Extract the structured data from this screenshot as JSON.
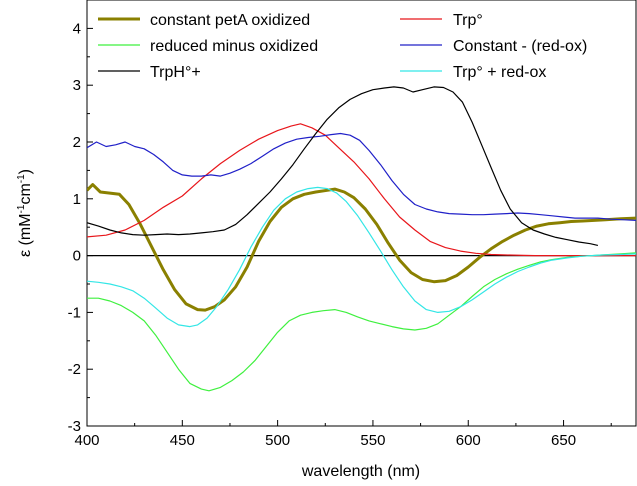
{
  "chart_data": {
    "type": "line",
    "title": "",
    "xlabel": "wavelength (nm)",
    "ylabel_parts": [
      "ε (mM",
      "-1",
      "cm",
      "-1",
      ")"
    ],
    "xlim": [
      400,
      688
    ],
    "ylim": [
      -3,
      4.5
    ],
    "x_ticks": [
      400,
      450,
      500,
      550,
      600,
      650
    ],
    "y_ticks": [
      -3,
      -2,
      -1,
      0,
      1,
      2,
      3,
      4
    ],
    "x_tick_labels": [
      "400",
      "450",
      "500",
      "550",
      "600",
      "650"
    ],
    "y_tick_labels": [
      "-3",
      "-2",
      "-1",
      "0",
      "1",
      "2",
      "3",
      "4"
    ],
    "zero_line": true,
    "grid": false,
    "legend_position": "top",
    "series": [
      {
        "name": "constant petA oxidized",
        "color": "#8a8000",
        "width": 3,
        "points": [
          [
            400,
            1.15
          ],
          [
            403,
            1.25
          ],
          [
            407,
            1.12
          ],
          [
            412,
            1.1
          ],
          [
            417,
            1.08
          ],
          [
            422,
            0.9
          ],
          [
            428,
            0.55
          ],
          [
            434,
            0.15
          ],
          [
            440,
            -0.25
          ],
          [
            446,
            -0.6
          ],
          [
            452,
            -0.85
          ],
          [
            458,
            -0.95
          ],
          [
            462,
            -0.96
          ],
          [
            467,
            -0.9
          ],
          [
            472,
            -0.78
          ],
          [
            478,
            -0.55
          ],
          [
            484,
            -0.2
          ],
          [
            490,
            0.25
          ],
          [
            496,
            0.6
          ],
          [
            502,
            0.85
          ],
          [
            508,
            1.0
          ],
          [
            514,
            1.08
          ],
          [
            520,
            1.12
          ],
          [
            526,
            1.15
          ],
          [
            530,
            1.17
          ],
          [
            535,
            1.12
          ],
          [
            540,
            1.02
          ],
          [
            546,
            0.82
          ],
          [
            552,
            0.55
          ],
          [
            558,
            0.22
          ],
          [
            564,
            -0.08
          ],
          [
            570,
            -0.3
          ],
          [
            576,
            -0.42
          ],
          [
            582,
            -0.46
          ],
          [
            588,
            -0.44
          ],
          [
            594,
            -0.35
          ],
          [
            600,
            -0.2
          ],
          [
            606,
            -0.03
          ],
          [
            612,
            0.12
          ],
          [
            618,
            0.25
          ],
          [
            624,
            0.36
          ],
          [
            630,
            0.45
          ],
          [
            636,
            0.52
          ],
          [
            642,
            0.56
          ],
          [
            648,
            0.58
          ],
          [
            654,
            0.6
          ],
          [
            660,
            0.61
          ],
          [
            666,
            0.62
          ],
          [
            672,
            0.63
          ],
          [
            680,
            0.65
          ],
          [
            688,
            0.66
          ]
        ]
      },
      {
        "name": "Trp°",
        "color": "#e8161b",
        "width": 1.2,
        "points": [
          [
            400,
            0.33
          ],
          [
            410,
            0.36
          ],
          [
            420,
            0.45
          ],
          [
            430,
            0.62
          ],
          [
            440,
            0.85
          ],
          [
            450,
            1.05
          ],
          [
            460,
            1.35
          ],
          [
            470,
            1.62
          ],
          [
            480,
            1.85
          ],
          [
            490,
            2.05
          ],
          [
            500,
            2.2
          ],
          [
            507,
            2.28
          ],
          [
            512,
            2.32
          ],
          [
            518,
            2.25
          ],
          [
            525,
            2.12
          ],
          [
            532,
            1.9
          ],
          [
            540,
            1.65
          ],
          [
            548,
            1.35
          ],
          [
            556,
            1.0
          ],
          [
            564,
            0.68
          ],
          [
            572,
            0.45
          ],
          [
            580,
            0.25
          ],
          [
            588,
            0.14
          ],
          [
            596,
            0.08
          ],
          [
            604,
            0.04
          ],
          [
            612,
            0.02
          ],
          [
            620,
            0.01
          ],
          [
            635,
            0.0
          ],
          [
            650,
            0.0
          ],
          [
            670,
            0.0
          ],
          [
            688,
            0.0
          ]
        ]
      },
      {
        "name": "reduced minus oxidized",
        "color": "#3ff03f",
        "width": 1.2,
        "points": [
          [
            400,
            -0.75
          ],
          [
            406,
            -0.75
          ],
          [
            412,
            -0.8
          ],
          [
            418,
            -0.88
          ],
          [
            424,
            -1.0
          ],
          [
            430,
            -1.15
          ],
          [
            436,
            -1.4
          ],
          [
            442,
            -1.7
          ],
          [
            448,
            -2.0
          ],
          [
            454,
            -2.25
          ],
          [
            460,
            -2.35
          ],
          [
            464,
            -2.38
          ],
          [
            470,
            -2.32
          ],
          [
            476,
            -2.2
          ],
          [
            482,
            -2.05
          ],
          [
            488,
            -1.85
          ],
          [
            494,
            -1.6
          ],
          [
            500,
            -1.35
          ],
          [
            506,
            -1.15
          ],
          [
            512,
            -1.05
          ],
          [
            518,
            -1.0
          ],
          [
            524,
            -0.97
          ],
          [
            530,
            -0.95
          ],
          [
            536,
            -1.0
          ],
          [
            542,
            -1.08
          ],
          [
            548,
            -1.15
          ],
          [
            554,
            -1.2
          ],
          [
            560,
            -1.25
          ],
          [
            566,
            -1.29
          ],
          [
            572,
            -1.31
          ],
          [
            578,
            -1.28
          ],
          [
            584,
            -1.2
          ],
          [
            590,
            -1.05
          ],
          [
            596,
            -0.9
          ],
          [
            602,
            -0.72
          ],
          [
            608,
            -0.55
          ],
          [
            614,
            -0.42
          ],
          [
            620,
            -0.32
          ],
          [
            626,
            -0.24
          ],
          [
            632,
            -0.17
          ],
          [
            638,
            -0.11
          ],
          [
            644,
            -0.07
          ],
          [
            652,
            -0.03
          ],
          [
            660,
            -0.01
          ],
          [
            670,
            0.01
          ],
          [
            680,
            0.03
          ],
          [
            688,
            0.05
          ]
        ]
      },
      {
        "name": "Constant - (red-ox)",
        "color": "#2020c8",
        "width": 1.2,
        "points": [
          [
            400,
            1.9
          ],
          [
            405,
            2.0
          ],
          [
            410,
            1.92
          ],
          [
            415,
            1.95
          ],
          [
            420,
            2.0
          ],
          [
            425,
            1.92
          ],
          [
            430,
            1.88
          ],
          [
            435,
            1.78
          ],
          [
            440,
            1.65
          ],
          [
            445,
            1.5
          ],
          [
            450,
            1.42
          ],
          [
            455,
            1.4
          ],
          [
            460,
            1.4
          ],
          [
            465,
            1.42
          ],
          [
            470,
            1.4
          ],
          [
            475,
            1.45
          ],
          [
            480,
            1.52
          ],
          [
            486,
            1.62
          ],
          [
            492,
            1.75
          ],
          [
            498,
            1.88
          ],
          [
            504,
            1.98
          ],
          [
            510,
            2.05
          ],
          [
            516,
            2.08
          ],
          [
            522,
            2.1
          ],
          [
            528,
            2.13
          ],
          [
            533,
            2.15
          ],
          [
            538,
            2.12
          ],
          [
            543,
            2.03
          ],
          [
            548,
            1.85
          ],
          [
            554,
            1.6
          ],
          [
            560,
            1.32
          ],
          [
            566,
            1.08
          ],
          [
            572,
            0.9
          ],
          [
            578,
            0.82
          ],
          [
            584,
            0.77
          ],
          [
            590,
            0.74
          ],
          [
            596,
            0.73
          ],
          [
            602,
            0.72
          ],
          [
            608,
            0.72
          ],
          [
            614,
            0.73
          ],
          [
            620,
            0.74
          ],
          [
            626,
            0.75
          ],
          [
            632,
            0.74
          ],
          [
            638,
            0.72
          ],
          [
            644,
            0.7
          ],
          [
            650,
            0.68
          ],
          [
            656,
            0.66
          ],
          [
            662,
            0.66
          ],
          [
            668,
            0.66
          ],
          [
            675,
            0.64
          ],
          [
            682,
            0.63
          ],
          [
            688,
            0.62
          ]
        ]
      },
      {
        "name": "TrpH°+",
        "color": "#000000",
        "width": 1.2,
        "points": [
          [
            400,
            0.58
          ],
          [
            406,
            0.52
          ],
          [
            412,
            0.45
          ],
          [
            418,
            0.4
          ],
          [
            424,
            0.37
          ],
          [
            430,
            0.36
          ],
          [
            436,
            0.37
          ],
          [
            442,
            0.38
          ],
          [
            448,
            0.37
          ],
          [
            454,
            0.38
          ],
          [
            460,
            0.4
          ],
          [
            466,
            0.42
          ],
          [
            472,
            0.45
          ],
          [
            478,
            0.55
          ],
          [
            484,
            0.72
          ],
          [
            490,
            0.92
          ],
          [
            496,
            1.12
          ],
          [
            502,
            1.35
          ],
          [
            508,
            1.6
          ],
          [
            514,
            1.88
          ],
          [
            520,
            2.15
          ],
          [
            526,
            2.4
          ],
          [
            532,
            2.6
          ],
          [
            538,
            2.75
          ],
          [
            544,
            2.85
          ],
          [
            550,
            2.92
          ],
          [
            556,
            2.95
          ],
          [
            561,
            2.97
          ],
          [
            566,
            2.95
          ],
          [
            571,
            2.88
          ],
          [
            576,
            2.92
          ],
          [
            582,
            2.97
          ],
          [
            587,
            2.96
          ],
          [
            592,
            2.88
          ],
          [
            597,
            2.7
          ],
          [
            602,
            2.35
          ],
          [
            607,
            1.95
          ],
          [
            612,
            1.55
          ],
          [
            617,
            1.15
          ],
          [
            622,
            0.82
          ],
          [
            628,
            0.58
          ],
          [
            634,
            0.45
          ],
          [
            640,
            0.38
          ],
          [
            646,
            0.32
          ],
          [
            652,
            0.28
          ],
          [
            658,
            0.24
          ],
          [
            664,
            0.21
          ],
          [
            668,
            0.18
          ]
        ]
      },
      {
        "name": "Trp° + red-ox",
        "color": "#33e6e6",
        "width": 1.2,
        "points": [
          [
            400,
            -0.45
          ],
          [
            406,
            -0.47
          ],
          [
            412,
            -0.5
          ],
          [
            418,
            -0.55
          ],
          [
            424,
            -0.62
          ],
          [
            430,
            -0.75
          ],
          [
            436,
            -0.92
          ],
          [
            442,
            -1.1
          ],
          [
            448,
            -1.22
          ],
          [
            454,
            -1.25
          ],
          [
            458,
            -1.22
          ],
          [
            463,
            -1.1
          ],
          [
            468,
            -0.9
          ],
          [
            474,
            -0.6
          ],
          [
            480,
            -0.25
          ],
          [
            486,
            0.15
          ],
          [
            492,
            0.5
          ],
          [
            498,
            0.8
          ],
          [
            504,
            1.0
          ],
          [
            510,
            1.12
          ],
          [
            516,
            1.18
          ],
          [
            521,
            1.2
          ],
          [
            526,
            1.18
          ],
          [
            531,
            1.1
          ],
          [
            536,
            0.95
          ],
          [
            542,
            0.7
          ],
          [
            548,
            0.4
          ],
          [
            554,
            0.08
          ],
          [
            560,
            -0.25
          ],
          [
            566,
            -0.55
          ],
          [
            572,
            -0.8
          ],
          [
            578,
            -0.95
          ],
          [
            584,
            -1.0
          ],
          [
            590,
            -0.98
          ],
          [
            596,
            -0.9
          ],
          [
            602,
            -0.78
          ],
          [
            608,
            -0.64
          ],
          [
            614,
            -0.5
          ],
          [
            620,
            -0.38
          ],
          [
            626,
            -0.28
          ],
          [
            632,
            -0.2
          ],
          [
            638,
            -0.13
          ],
          [
            644,
            -0.08
          ],
          [
            652,
            -0.04
          ],
          [
            660,
            -0.01
          ],
          [
            670,
            0.01
          ],
          [
            680,
            0.02
          ],
          [
            688,
            0.03
          ]
        ]
      }
    ]
  }
}
